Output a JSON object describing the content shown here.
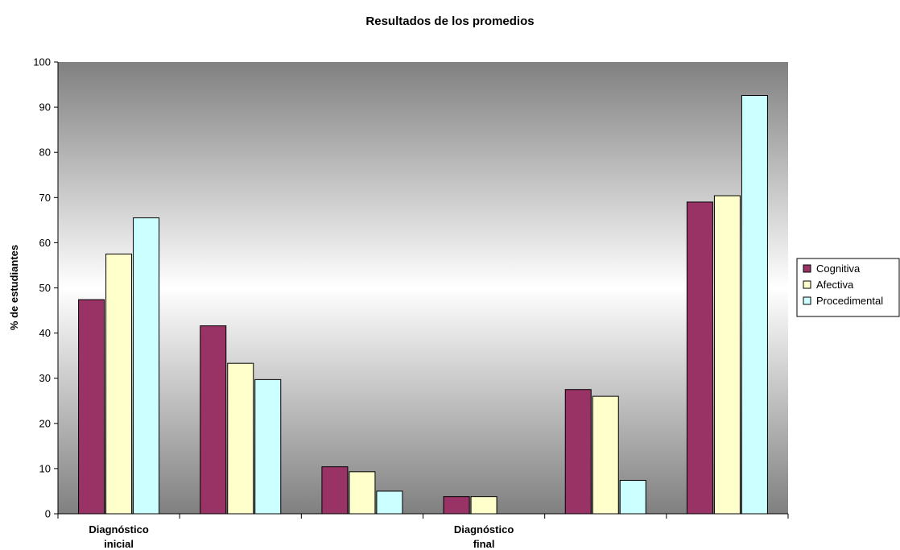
{
  "chart_data": {
    "type": "bar",
    "title": "Resultados de los promedios",
    "ylabel": "% de estudiantes",
    "xlabel": "",
    "ylim": [
      0,
      100
    ],
    "yticks": [
      "0",
      "10",
      "20",
      "30",
      "40",
      "50",
      "60",
      "70",
      "80",
      "90",
      "100"
    ],
    "categories": [
      "",
      "",
      "",
      "",
      "",
      ""
    ],
    "group_labels": [
      {
        "lines": [
          "Diagnóstico",
          "inicial"
        ],
        "at_category": 0
      },
      {
        "lines": [
          "Diagnóstico",
          "final"
        ],
        "at_category": 3
      }
    ],
    "series": [
      {
        "name": "Cognitiva",
        "color": "#993366",
        "values": [
          47.4,
          41.6,
          10.4,
          3.8,
          27.5,
          69.0
        ]
      },
      {
        "name": "Afectiva",
        "color": "#FFFFCC",
        "values": [
          57.5,
          33.3,
          9.3,
          3.8,
          26.0,
          70.4
        ]
      },
      {
        "name": "Procedimental",
        "color": "#CCFFFF",
        "values": [
          65.5,
          29.7,
          5.0,
          0,
          7.4,
          92.6
        ]
      }
    ],
    "grid": false,
    "legend_position": "right",
    "plot_background": "gray-gradient"
  }
}
